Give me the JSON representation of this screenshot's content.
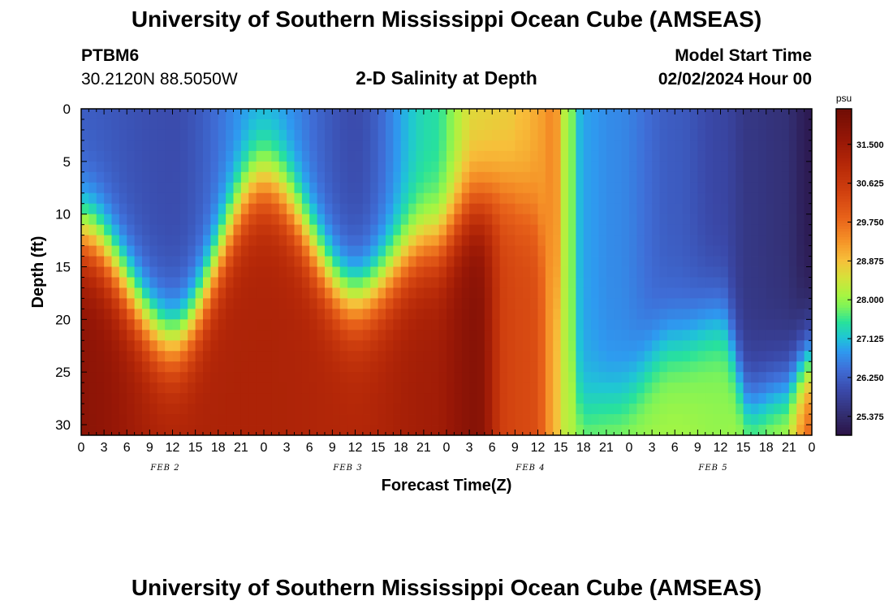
{
  "header": {
    "title": "University of Southern Mississippi Ocean Cube (AMSEAS)",
    "station": "PTBM6",
    "coords": "30.2120N  88.5050W",
    "plot_title": "2-D Salinity at Depth",
    "model_start_label": "Model Start Time",
    "model_start_value": "02/02/2024 Hour 00"
  },
  "footer": {
    "title": "University of Southern Mississippi Ocean Cube (AMSEAS)"
  },
  "chart_data": {
    "type": "heatmap",
    "title": "2-D Salinity at Depth",
    "xlabel": "Forecast Time(Z)",
    "ylabel": "Depth (ft)",
    "colorbar_label": "psu",
    "x_hours_range": [
      0,
      96
    ],
    "x_tick_labels": [
      "0",
      "3",
      "6",
      "9",
      "12",
      "15",
      "18",
      "21",
      "0",
      "3",
      "6",
      "9",
      "12",
      "15",
      "18",
      "21",
      "0",
      "3",
      "6",
      "9",
      "12",
      "15",
      "18",
      "21",
      "0",
      "3",
      "6",
      "9",
      "12",
      "15",
      "18",
      "21",
      "0"
    ],
    "day_labels": [
      "FEB 2",
      "FEB 3",
      "FEB 4",
      "FEB 5"
    ],
    "y_range": [
      0,
      31
    ],
    "y_ticks": [
      0,
      5,
      10,
      15,
      20,
      25,
      30
    ],
    "colorbar_range": [
      24.95,
      32.3
    ],
    "colorbar_ticks": [
      "31.500",
      "30.625",
      "29.750",
      "28.875",
      "28.000",
      "27.125",
      "26.250",
      "25.375"
    ],
    "colormap": [
      {
        "v": 24.95,
        "c": "#2a1145"
      },
      {
        "v": 25.4,
        "c": "#322d6e"
      },
      {
        "v": 25.95,
        "c": "#3a48a8"
      },
      {
        "v": 26.45,
        "c": "#3f6fd8"
      },
      {
        "v": 26.85,
        "c": "#2e9af0"
      },
      {
        "v": 27.15,
        "c": "#1fc5d6"
      },
      {
        "v": 27.5,
        "c": "#28e29b"
      },
      {
        "v": 27.85,
        "c": "#7cf35a"
      },
      {
        "v": 28.1,
        "c": "#a6f542"
      },
      {
        "v": 28.5,
        "c": "#d5e23a"
      },
      {
        "v": 28.9,
        "c": "#f7bf3a"
      },
      {
        "v": 29.35,
        "c": "#f59127"
      },
      {
        "v": 29.85,
        "c": "#e8621a"
      },
      {
        "v": 30.45,
        "c": "#d0400f"
      },
      {
        "v": 31.05,
        "c": "#b52808"
      },
      {
        "v": 31.6,
        "c": "#971706"
      },
      {
        "v": 32.3,
        "c": "#700d05"
      }
    ],
    "profile_hours": [
      0,
      12,
      24,
      36,
      46,
      52,
      56,
      58,
      60,
      61,
      62,
      64,
      66,
      70,
      78,
      84,
      88,
      92,
      96
    ],
    "surface_psu": [
      26.2,
      26.0,
      26.9,
      26.0,
      27.4,
      28.6,
      28.7,
      28.9,
      29.1,
      29.3,
      29.5,
      28.0,
      26.9,
      26.7,
      26.2,
      25.9,
      25.6,
      25.5,
      25.1
    ],
    "halocline_depth_ft": [
      12,
      22,
      7,
      18,
      13,
      9,
      8,
      9,
      10,
      13,
      17,
      24,
      29,
      28,
      22,
      20,
      28,
      27,
      24
    ],
    "bottom_psu": [
      31.8,
      31.2,
      31.2,
      31.1,
      31.4,
      31.9,
      30.4,
      30.3,
      30.2,
      29.6,
      29.0,
      28.2,
      28.1,
      28.1,
      28.1,
      28.0,
      28.2,
      28.4,
      30.0
    ]
  }
}
